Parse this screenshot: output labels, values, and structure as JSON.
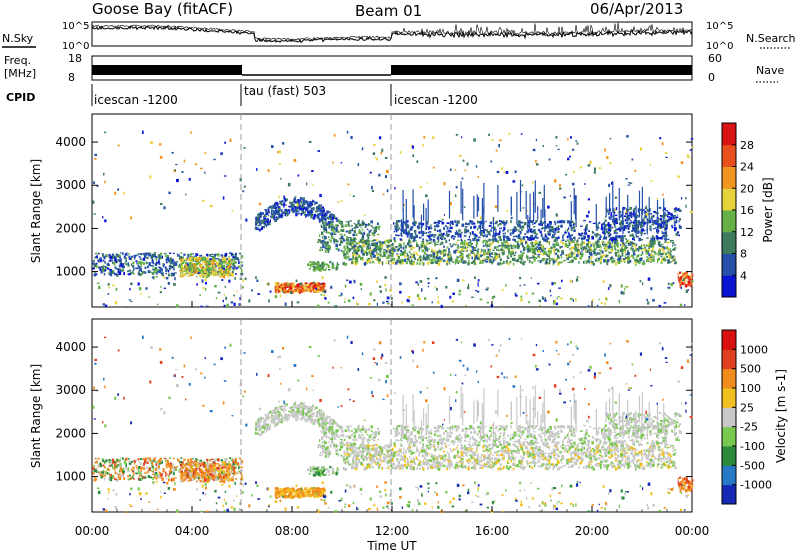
{
  "header": {
    "station": "Goose Bay (fitACF)",
    "beam": "Beam 01",
    "date": "06/Apr/2013"
  },
  "housekeeping": {
    "nsky_label": "N.Sky",
    "nsearch_label": "N.Search",
    "noise_ticks": [
      "10^5",
      "10^0"
    ],
    "freq_label_1": "Freq.",
    "freq_label_2": "[MHz]",
    "freq_ticks": [
      "18",
      "8"
    ],
    "nave_label": "Nave",
    "nave_ticks": [
      "60",
      "0"
    ],
    "cpid_label": "CPID"
  },
  "cpid_segments": [
    {
      "name": "icescan -1200",
      "start_hour": 0
    },
    {
      "name": "tau (fast) 503",
      "start_hour": 6
    },
    {
      "name": "icescan -1200",
      "start_hour": 12
    }
  ],
  "time_axis": {
    "label": "Time UT",
    "ticks": [
      "00:00",
      "04:00",
      "08:00",
      "12:00",
      "16:00",
      "20:00",
      "00:00"
    ],
    "range_hours": [
      0,
      24
    ]
  },
  "chart_data": [
    {
      "type": "heatmap",
      "panel": "power",
      "ylabel": "Slant Range [km]",
      "yticks": [
        1000,
        2000,
        3000,
        4000
      ],
      "ylim": [
        180,
        4650
      ],
      "colorbar_label": "Power [dB]",
      "colorbar_ticks": [
        "4",
        "8",
        "12",
        "16",
        "20",
        "24",
        "28"
      ],
      "colors": [
        "#0a14d2",
        "#2450a8",
        "#3d7a5e",
        "#64b046",
        "#e6d23c",
        "#f09620",
        "#e8501e",
        "#d81414"
      ]
    },
    {
      "type": "heatmap",
      "panel": "velocity",
      "ylabel": "Slant Range [km]",
      "yticks": [
        1000,
        2000,
        3000,
        4000
      ],
      "ylim": [
        180,
        4650
      ],
      "colorbar_label": "Velocity [m s-1]",
      "colorbar_ticks": [
        "1000",
        "500",
        "100",
        "25",
        "-25",
        "-100",
        "-500",
        "-1000"
      ],
      "colors": [
        "#1428b4",
        "#2878c8",
        "#2a8a3a",
        "#78c850",
        "#c8c8c8",
        "#f0c020",
        "#f08c1e",
        "#e04020",
        "#d81010"
      ]
    }
  ]
}
